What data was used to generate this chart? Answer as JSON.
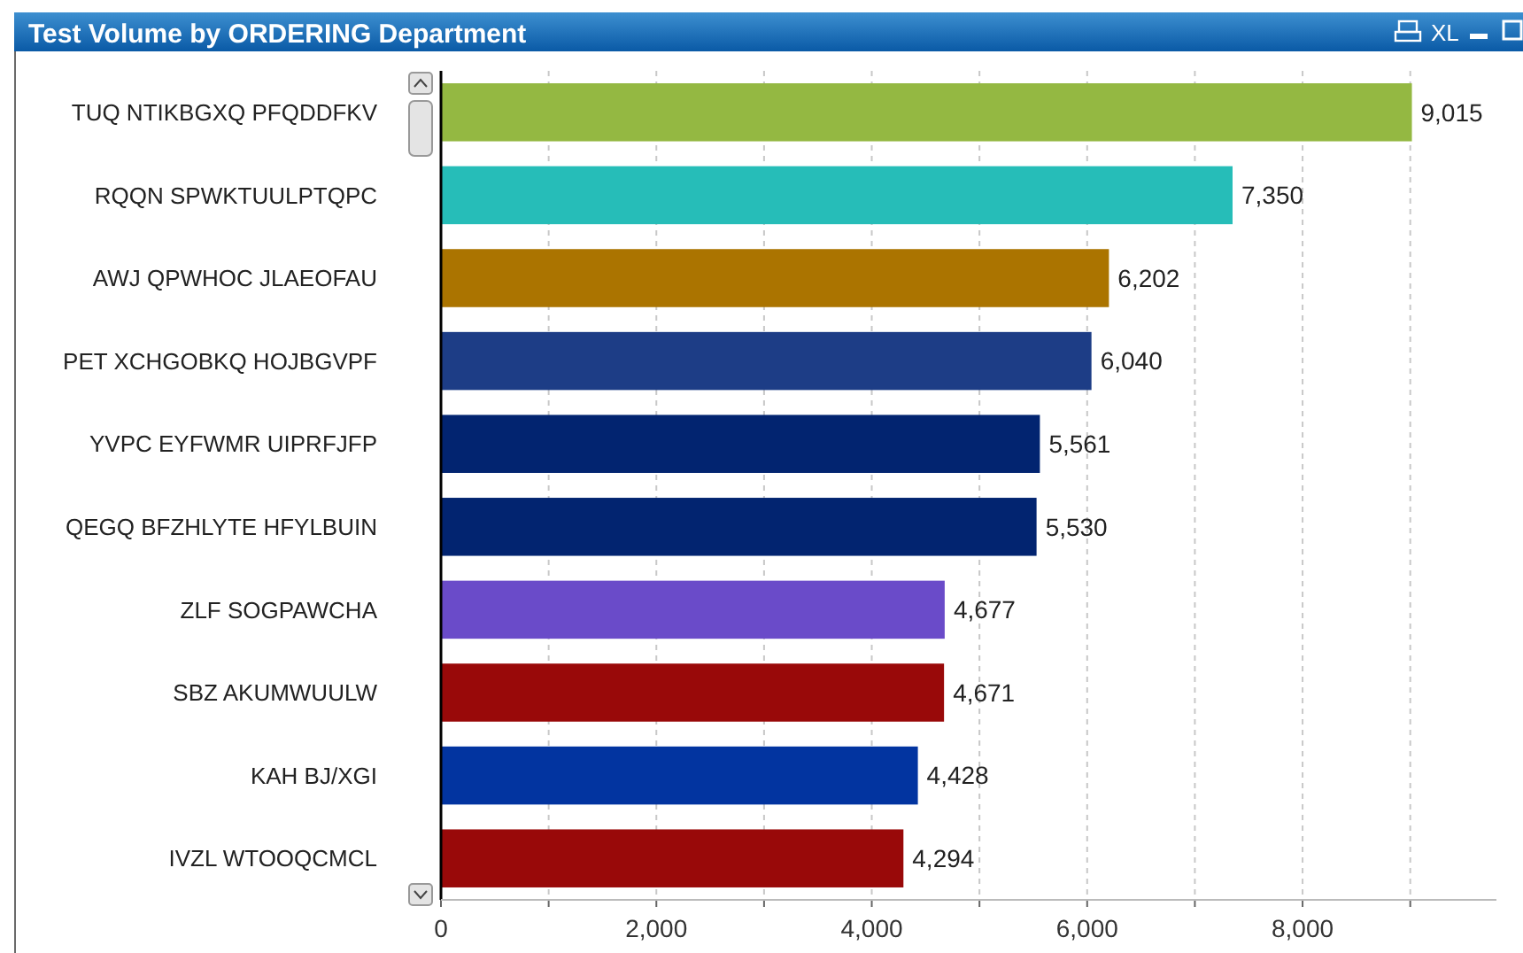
{
  "chart_data": {
    "type": "bar",
    "orientation": "horizontal",
    "title": "Test Volume by ORDERING Department",
    "annotations": [
      "XL"
    ],
    "categories": [
      "TUQ NTIKBGXQ PFQDDFKV",
      "RQQN SPWKTUULPTQPC",
      "AWJ QPWHOC JLAEOFAU",
      "PET XCHGOBKQ HOJBGVPF",
      "YVPC EYFWMR UIPRFJFP",
      "QEGQ BFZHLYTE HFYLBUIN",
      "ZLF SOGPAWCHA",
      "SBZ AKUMWUULW",
      "KAH BJ/XGI",
      "IVZL WTOOQCMCL"
    ],
    "values": [
      9015,
      7350,
      6202,
      6040,
      5561,
      5530,
      4677,
      4671,
      4428,
      4294
    ],
    "colors": [
      "#94b842",
      "#26bdb8",
      "#ab7400",
      "#1d3d86",
      "#022470",
      "#022470",
      "#6a4bc9",
      "#990909",
      "#0234a0",
      "#990909"
    ],
    "value_labels": [
      "9,015",
      "7,350",
      "6,202",
      "6,040",
      "5,561",
      "5,530",
      "4,677",
      "4,671",
      "4,428",
      "4,294"
    ],
    "xlim": [
      0,
      9800
    ],
    "xticks": [
      0,
      {
        "value": 1000,
        "label": null
      },
      {
        "value": 2000,
        "label": "2,000"
      },
      {
        "value": 3000,
        "label": null
      },
      {
        "value": 4000,
        "label": "4,000"
      },
      {
        "value": 5000,
        "label": null
      },
      {
        "value": 6000,
        "label": "6,000"
      },
      {
        "value": 7000,
        "label": null
      },
      {
        "value": 8000,
        "label": "8,000"
      },
      {
        "value": 9000,
        "label": null
      }
    ],
    "grid": "x"
  }
}
